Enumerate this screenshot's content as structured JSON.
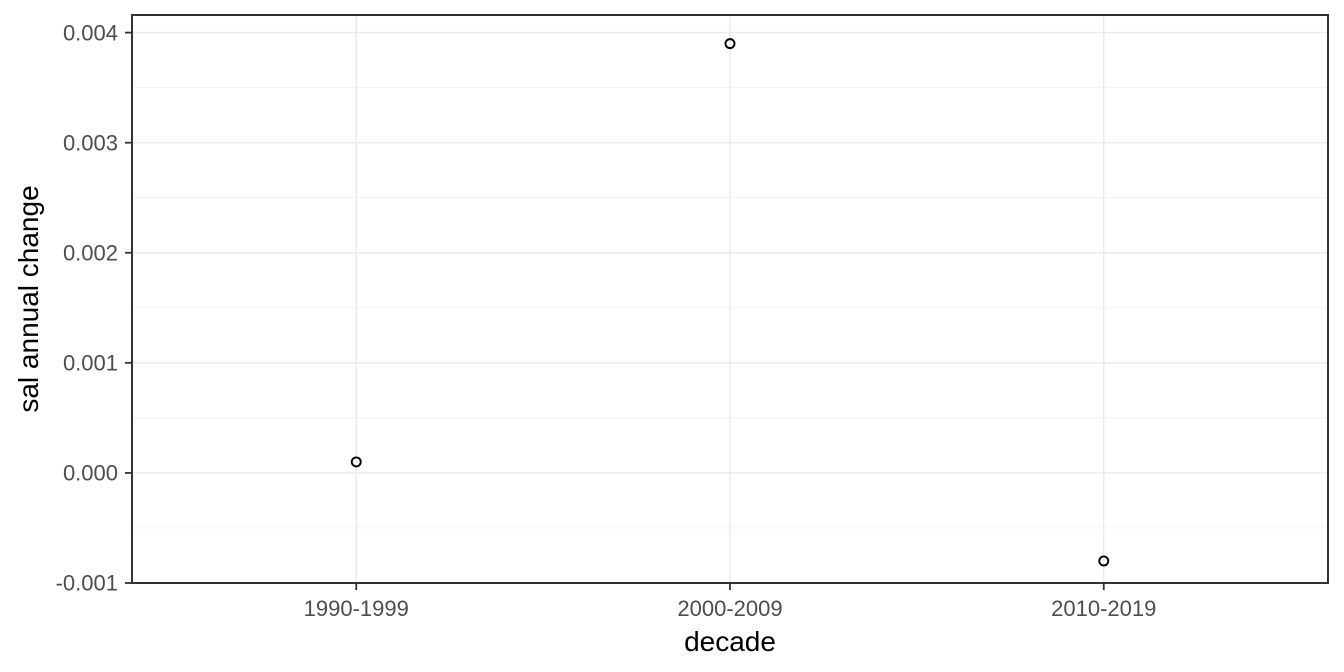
{
  "chart_data": {
    "type": "scatter",
    "title": "",
    "xlabel": "decade",
    "ylabel": "sal annual change",
    "categories": [
      "1990-1999",
      "2000-2009",
      "2010-2019"
    ],
    "values": [
      0.0001,
      0.0039,
      -0.0008
    ],
    "y_ticks": [
      -0.001,
      0.0,
      0.001,
      0.002,
      0.003,
      0.004
    ],
    "y_tick_labels": [
      "-0.001",
      "0.000",
      "0.001",
      "0.002",
      "0.003",
      "0.004"
    ],
    "ylim": [
      -0.001,
      0.00416
    ],
    "legend": "none",
    "grid": "horizontal major+minor, vertical major at categories",
    "point_style": "open-circle",
    "colors": {
      "background": "#FFFFFF",
      "panel_background": "#FFFFFF",
      "panel_border": "#333333",
      "grid_major": "#EBEBEB",
      "grid_minor": "#F1F1F1",
      "tick_mark": "#333333",
      "tick_label": "#4D4D4D",
      "axis_title": "#000000",
      "point_stroke": "#000000"
    }
  }
}
